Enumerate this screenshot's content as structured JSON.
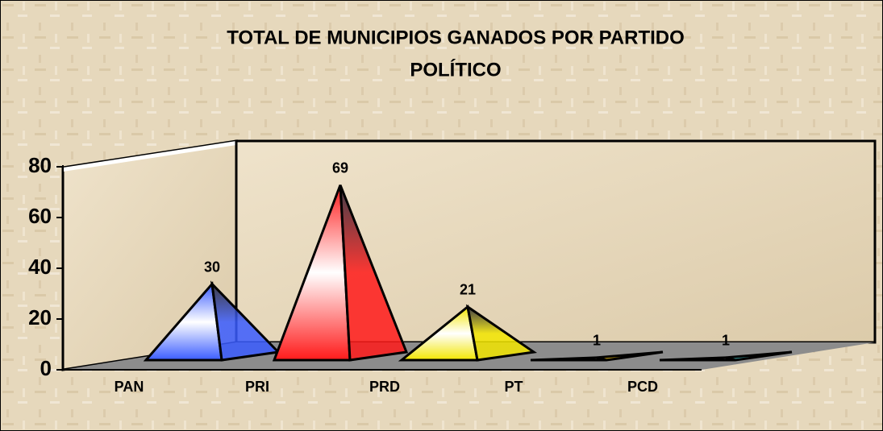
{
  "chart_data": {
    "type": "pyramid",
    "title": "TOTAL DE MUNICIPIOS GANADOS POR PARTIDO",
    "subtitle": "POLÍTICO",
    "categories": [
      "PAN",
      "PRI",
      "PRD",
      "PT",
      "PCD"
    ],
    "values": [
      30,
      69,
      21,
      1,
      1
    ],
    "colors": [
      "#3a5cff",
      "#ff1a1a",
      "#f2e600",
      "#d4a800",
      "#2aa0a0"
    ],
    "ylim": [
      0,
      80
    ],
    "yticks": [
      0,
      20,
      40,
      60,
      80
    ],
    "grid": false
  }
}
